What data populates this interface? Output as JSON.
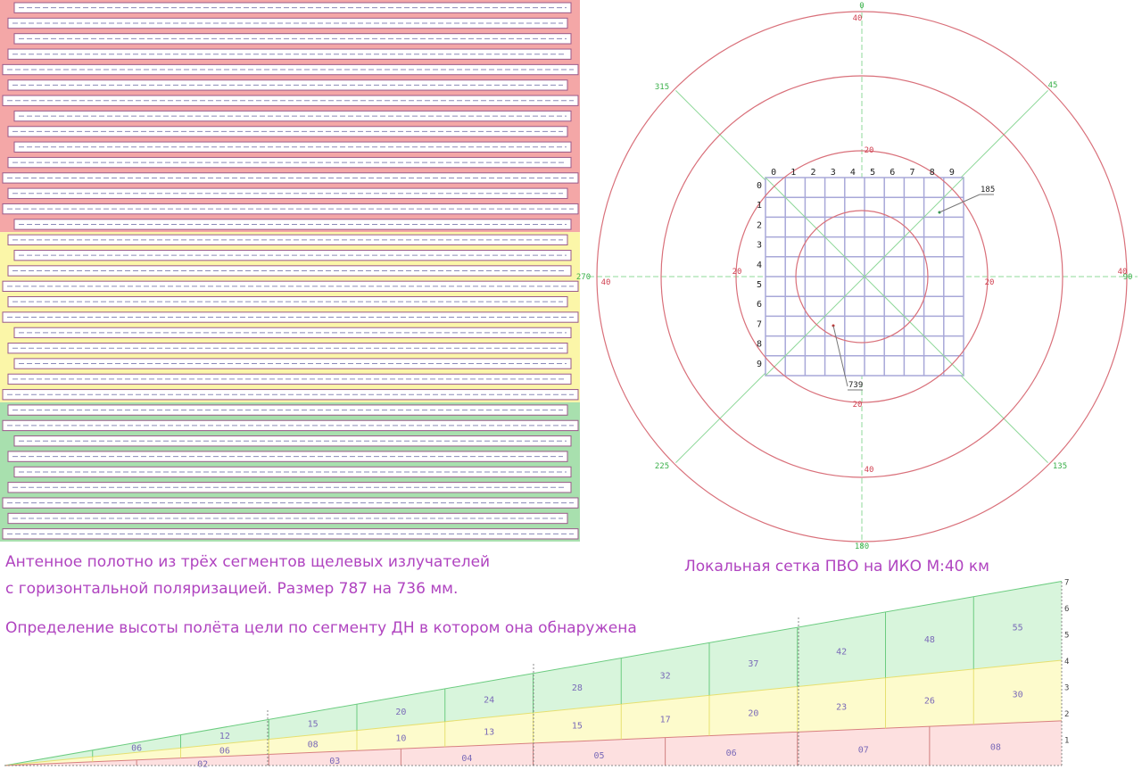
{
  "captions": {
    "antenna_line1": "Антенное полотно из трёх сегментов щелевых излучателей",
    "antenna_line2": " с горизонтальной поляризацией. Размер 787 на 736 мм.",
    "grid_title": "Локальная сетка ПВО на ИКО М:40 км",
    "height_title": "Определение высоты полёта цели по сегменту ДН в котором она обнаружена"
  },
  "antenna": {
    "segments": [
      {
        "name": "top",
        "color": "#f4a7a7",
        "rows": 15
      },
      {
        "name": "middle",
        "color": "#fbf6a8",
        "rows": 11
      },
      {
        "name": "bottom",
        "color": "#a8e0ae",
        "rows": 9
      }
    ]
  },
  "polar": {
    "azimuth_labels": [
      "0",
      "45",
      "90",
      "135",
      "180",
      "225",
      "270",
      "315"
    ],
    "range_labels": {
      "top_outer": "40",
      "top_inner": "20",
      "left_outer": "40",
      "left_inner": "20",
      "right_inner": "20",
      "right_outer": "40",
      "bottom_inner": "20",
      "bottom_outer": "40"
    },
    "grid_columns": [
      "0",
      "1",
      "2",
      "3",
      "4",
      "5",
      "6",
      "7",
      "8",
      "9"
    ],
    "grid_rows": [
      "0",
      "1",
      "2",
      "3",
      "4",
      "5",
      "6",
      "7",
      "8",
      "9"
    ],
    "targets": [
      {
        "label": "185",
        "color": "#2a9a4a"
      },
      {
        "label": "739",
        "color": "#c03030"
      }
    ],
    "colors": {
      "rings": "#d9707a",
      "axes": "#8fd89a",
      "grid": "#a8a8d8"
    }
  },
  "profile": {
    "scale_ticks": [
      "1",
      "2",
      "3",
      "4",
      "5",
      "6",
      "7"
    ],
    "green_labels": [
      "",
      "06",
      "12",
      "15",
      "20",
      "24",
      "28",
      "32",
      "37",
      "42",
      "48",
      "55"
    ],
    "yellow_labels": [
      "",
      "",
      "06",
      "08",
      "10",
      "13",
      "15",
      "17",
      "20",
      "23",
      "26",
      "30"
    ],
    "red_labels": [
      "",
      "02",
      "03",
      "04",
      "05",
      "06",
      "07",
      "08"
    ],
    "colors": {
      "green": "#d8f5dc",
      "yellow": "#fdfbcc",
      "red": "#fde0e0",
      "label": "#7a6ab8"
    }
  }
}
